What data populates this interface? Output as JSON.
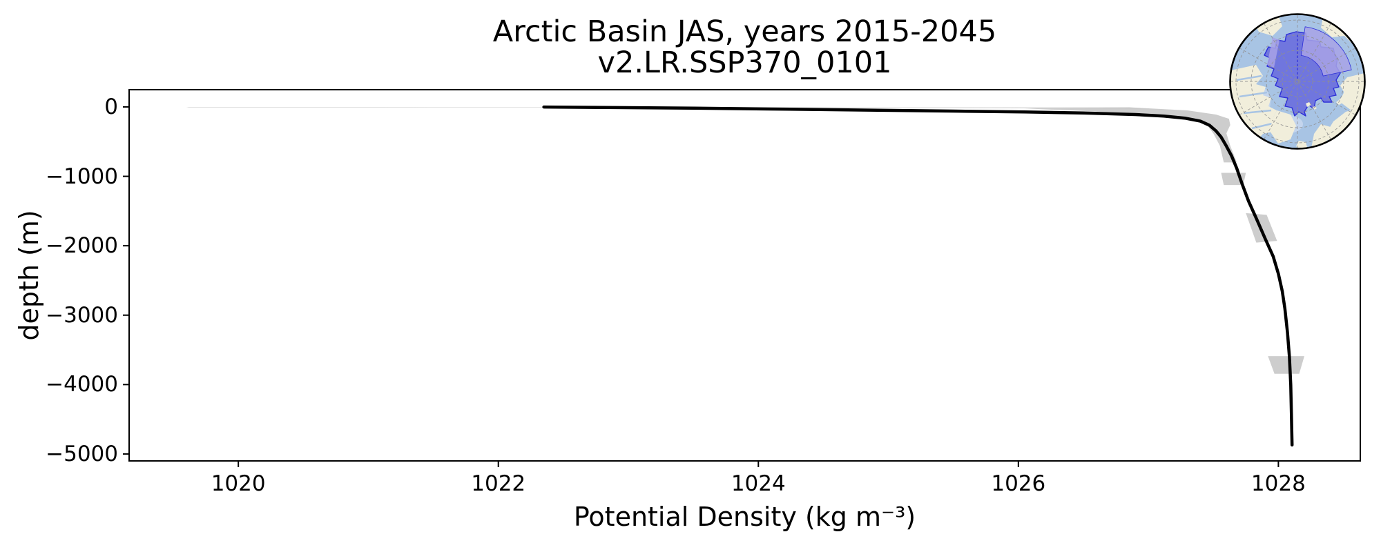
{
  "title": {
    "line1": "Arctic Basin JAS, years 2015-2045",
    "line2": "v2.LR.SSP370_0101"
  },
  "axes": {
    "xlabel": "Potential Density (kg m⁻³)",
    "ylabel": "depth (m)"
  },
  "colors": {
    "mean_line": "#000000",
    "shading": "#c8c8c8",
    "spine": "#000000",
    "background": "#ffffff"
  },
  "chart_data": {
    "type": "line",
    "title": "Arctic Basin JAS, years 2015-2045 — v2.LR.SSP370_0101",
    "xlabel": "Potential Density (kg m⁻³)",
    "ylabel": "depth (m)",
    "xlim": [
      1019.16,
      1028.63
    ],
    "ylim": [
      -5100,
      248
    ],
    "x_ticks": [
      1020,
      1022,
      1024,
      1026,
      1028
    ],
    "x_tick_labels": [
      "1020",
      "1022",
      "1024",
      "1026",
      "1028"
    ],
    "y_ticks": [
      0,
      -1000,
      -2000,
      -3000,
      -4000,
      -5000
    ],
    "y_tick_labels": [
      "0",
      "−1000",
      "−2000",
      "−3000",
      "−4000",
      "−5000"
    ],
    "grid": false,
    "legend": null,
    "series": [
      {
        "name": "ensemble-mean-density-profile",
        "color": "#000000",
        "width": 4.5,
        "points": [
          [
            1022.35,
            -2
          ],
          [
            1022.9,
            -9
          ],
          [
            1023.5,
            -18
          ],
          [
            1024.1,
            -30
          ],
          [
            1024.8,
            -45
          ],
          [
            1025.5,
            -60
          ],
          [
            1026.05,
            -73
          ],
          [
            1026.5,
            -88
          ],
          [
            1026.9,
            -110
          ],
          [
            1027.12,
            -133
          ],
          [
            1027.28,
            -162
          ],
          [
            1027.4,
            -205
          ],
          [
            1027.47,
            -265
          ],
          [
            1027.52,
            -345
          ],
          [
            1027.56,
            -435
          ],
          [
            1027.6,
            -565
          ],
          [
            1027.64,
            -705
          ],
          [
            1027.68,
            -885
          ],
          [
            1027.72,
            -1105
          ],
          [
            1027.77,
            -1355
          ],
          [
            1027.83,
            -1605
          ],
          [
            1027.9,
            -1905
          ],
          [
            1027.96,
            -2155
          ],
          [
            1028.0,
            -2405
          ],
          [
            1028.03,
            -2655
          ],
          [
            1028.05,
            -2905
          ],
          [
            1028.07,
            -3255
          ],
          [
            1028.085,
            -3605
          ],
          [
            1028.095,
            -4005
          ],
          [
            1028.1,
            -4405
          ],
          [
            1028.105,
            -4870
          ]
        ]
      }
    ],
    "shading": [
      {
        "name": "surface-min-max-sliver",
        "color": "#c8c8c8",
        "opacity": 0.65,
        "points": [
          [
            1019.6,
            -2
          ],
          [
            1026.85,
            -5
          ],
          [
            1027.02,
            -30
          ],
          [
            1025.0,
            -10
          ],
          [
            1019.62,
            -10
          ]
        ]
      },
      {
        "name": "pycnocline-band",
        "color": "#c8c8c8",
        "opacity": 0.9,
        "points": [
          [
            1026.85,
            -5
          ],
          [
            1027.3,
            -50
          ],
          [
            1027.52,
            -110
          ],
          [
            1027.62,
            -170
          ],
          [
            1027.63,
            -260
          ],
          [
            1027.6,
            -380
          ],
          [
            1027.63,
            -560
          ],
          [
            1027.68,
            -800
          ],
          [
            1027.58,
            -800
          ],
          [
            1027.55,
            -560
          ],
          [
            1027.5,
            -380
          ],
          [
            1027.45,
            -260
          ],
          [
            1027.34,
            -170
          ],
          [
            1027.04,
            -110
          ],
          [
            1026.52,
            -60
          ],
          [
            1026.05,
            -22
          ]
        ]
      },
      {
        "name": "spread-patch-1000m",
        "color": "#c8c8c8",
        "opacity": 0.9,
        "points": [
          [
            1027.56,
            -950
          ],
          [
            1027.75,
            -950
          ],
          [
            1027.73,
            -1125
          ],
          [
            1027.58,
            -1125
          ]
        ]
      },
      {
        "name": "spread-patch-1750m",
        "color": "#c8c8c8",
        "opacity": 0.9,
        "points": [
          [
            1027.75,
            -1530
          ],
          [
            1027.91,
            -1555
          ],
          [
            1027.99,
            -1930
          ],
          [
            1027.83,
            -1955
          ]
        ]
      },
      {
        "name": "spread-patch-3700m",
        "color": "#c8c8c8",
        "opacity": 0.9,
        "points": [
          [
            1027.92,
            -3590
          ],
          [
            1028.2,
            -3590
          ],
          [
            1028.16,
            -3845
          ],
          [
            1027.97,
            -3845
          ]
        ]
      }
    ],
    "inset_map": {
      "description": "North-polar stereographic locator map with Arctic Basin region highlighted",
      "colors": {
        "ocean": "#a8c4e4",
        "shelf": "#c4d5ed",
        "land": "#f1eedb",
        "region_fill": "#6b6fdd",
        "region_fill_light": "#a8a3e6",
        "region_edge": "#2d2fd8",
        "graticule": "#909090",
        "border": "#000000"
      }
    }
  }
}
